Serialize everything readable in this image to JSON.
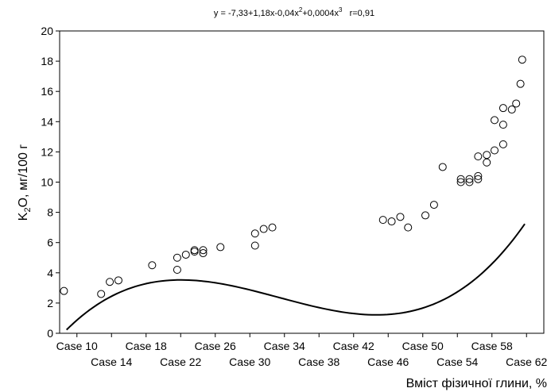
{
  "chart_data": {
    "type": "scatter",
    "title": "y = -7,33+1,18x-0,04x²+0,0004x³   r=0,91",
    "title_parts": {
      "main": "y = -7,33+1,18x-0,04x",
      "sup1": "2",
      "mid": "+0,0004x",
      "sup2": "3",
      "tail": "   r=0,91"
    },
    "xlabel": "Вміст фізичної глини, %",
    "ylabel": "K₂O, мг/100 г",
    "ylabel_parts": {
      "pre": "K",
      "sub": "2",
      "post": "O, мг/100 г"
    },
    "xlim": [
      8,
      64
    ],
    "ylim": [
      0,
      20
    ],
    "y_ticks": [
      0,
      2,
      4,
      6,
      8,
      10,
      12,
      14,
      16,
      18,
      20
    ],
    "x_ticks_upper": [
      {
        "x": 10,
        "label": "Case 10"
      },
      {
        "x": 18,
        "label": "Case 18"
      },
      {
        "x": 26,
        "label": "Case 26"
      },
      {
        "x": 34,
        "label": "Case 34"
      },
      {
        "x": 42,
        "label": "Case 42"
      },
      {
        "x": 50,
        "label": "Case 50"
      },
      {
        "x": 58,
        "label": "Case 58"
      }
    ],
    "x_ticks_lower": [
      {
        "x": 14,
        "label": "Case 14"
      },
      {
        "x": 22,
        "label": "Case 22"
      },
      {
        "x": 30,
        "label": "Case 30"
      },
      {
        "x": 38,
        "label": "Case 38"
      },
      {
        "x": 46,
        "label": "Case 46"
      },
      {
        "x": 54,
        "label": "Case 54"
      },
      {
        "x": 62,
        "label": "Case 62"
      }
    ],
    "points": [
      {
        "x": 8.5,
        "y": 2.8
      },
      {
        "x": 12.8,
        "y": 2.6
      },
      {
        "x": 13.8,
        "y": 3.4
      },
      {
        "x": 14.8,
        "y": 3.5
      },
      {
        "x": 18.7,
        "y": 4.5
      },
      {
        "x": 21.6,
        "y": 4.2
      },
      {
        "x": 21.6,
        "y": 5.0
      },
      {
        "x": 22.6,
        "y": 5.2
      },
      {
        "x": 23.6,
        "y": 5.4
      },
      {
        "x": 23.6,
        "y": 5.5
      },
      {
        "x": 24.6,
        "y": 5.3
      },
      {
        "x": 24.6,
        "y": 5.5
      },
      {
        "x": 26.6,
        "y": 5.7
      },
      {
        "x": 30.6,
        "y": 5.8
      },
      {
        "x": 30.6,
        "y": 6.6
      },
      {
        "x": 31.6,
        "y": 6.9
      },
      {
        "x": 32.6,
        "y": 7.0
      },
      {
        "x": 45.4,
        "y": 7.5
      },
      {
        "x": 46.4,
        "y": 7.4
      },
      {
        "x": 47.4,
        "y": 7.7
      },
      {
        "x": 48.3,
        "y": 7.0
      },
      {
        "x": 50.3,
        "y": 7.8
      },
      {
        "x": 51.3,
        "y": 8.5
      },
      {
        "x": 52.3,
        "y": 11.0
      },
      {
        "x": 54.4,
        "y": 10.2
      },
      {
        "x": 54.4,
        "y": 10.0
      },
      {
        "x": 55.4,
        "y": 10.0
      },
      {
        "x": 55.4,
        "y": 10.2
      },
      {
        "x": 56.4,
        "y": 10.2
      },
      {
        "x": 56.4,
        "y": 10.4
      },
      {
        "x": 56.4,
        "y": 11.7
      },
      {
        "x": 57.4,
        "y": 11.3
      },
      {
        "x": 57.4,
        "y": 11.8
      },
      {
        "x": 58.3,
        "y": 12.1
      },
      {
        "x": 58.3,
        "y": 14.1
      },
      {
        "x": 59.3,
        "y": 12.5
      },
      {
        "x": 59.3,
        "y": 13.8
      },
      {
        "x": 59.3,
        "y": 14.9
      },
      {
        "x": 60.3,
        "y": 14.8
      },
      {
        "x": 60.8,
        "y": 15.2
      },
      {
        "x": 61.3,
        "y": 16.5
      },
      {
        "x": 61.5,
        "y": 18.1
      }
    ],
    "fit": {
      "type": "polynomial",
      "coefficients": [
        -7.33,
        1.18,
        -0.04,
        0.0004
      ],
      "x_range": [
        8.8,
        61.8
      ]
    },
    "grid": false,
    "legend": "none"
  }
}
